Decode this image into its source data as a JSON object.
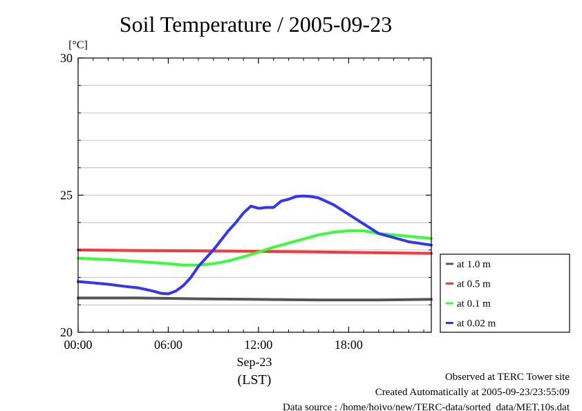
{
  "chart_data": {
    "type": "line",
    "title": "Soil Temperature / 2005-09-23",
    "yunit": "[°C]",
    "ylim": [
      20,
      30
    ],
    "yticks": [
      "20",
      "25",
      "30"
    ],
    "y_minor_grid": [
      21,
      22,
      23,
      24,
      26,
      27,
      28,
      29
    ],
    "xlim": [
      0,
      23.5
    ],
    "xticks": [
      {
        "x": 0,
        "label": "00:00"
      },
      {
        "x": 6,
        "label": "06:00"
      },
      {
        "x": 12,
        "label": "12:00"
      },
      {
        "x": 18,
        "label": "18:00"
      }
    ],
    "xdate": "Sep-23",
    "xlabel": "(LST)",
    "grid": true,
    "legend_position": "right",
    "series": [
      {
        "name": "at 1.0 m",
        "color": "#555555",
        "x": [
          0,
          4,
          8,
          12,
          16,
          20,
          23.5
        ],
        "y": [
          21.25,
          21.25,
          21.22,
          21.2,
          21.18,
          21.18,
          21.2
        ]
      },
      {
        "name": "at 0.5 m",
        "color": "#ff3333",
        "x": [
          0,
          4,
          8,
          12,
          16,
          20,
          23.5
        ],
        "y": [
          23.0,
          22.98,
          22.97,
          22.95,
          22.93,
          22.9,
          22.88
        ]
      },
      {
        "name": "at 0.1 m",
        "color": "#33ff33",
        "x": [
          0,
          2,
          4,
          6,
          7,
          8,
          9,
          10,
          11,
          12,
          13,
          14,
          15,
          16,
          17,
          18,
          19,
          20,
          21,
          22,
          23.5
        ],
        "y": [
          22.7,
          22.65,
          22.58,
          22.5,
          22.45,
          22.45,
          22.5,
          22.6,
          22.75,
          22.92,
          23.1,
          23.25,
          23.4,
          23.55,
          23.65,
          23.7,
          23.7,
          23.6,
          23.55,
          23.5,
          23.42
        ]
      },
      {
        "name": "at 0.02 m",
        "color": "#3333ff",
        "x": [
          0,
          1,
          2,
          3,
          4,
          5,
          5.5,
          6,
          6.5,
          7,
          7.5,
          8,
          9,
          10,
          10.5,
          11,
          11.5,
          12,
          12.5,
          13,
          13.5,
          14,
          14.5,
          15,
          15.5,
          16,
          17,
          18,
          19,
          20,
          21,
          22,
          23.5
        ],
        "y": [
          21.85,
          21.8,
          21.75,
          21.68,
          21.62,
          21.5,
          21.42,
          21.4,
          21.5,
          21.7,
          22.0,
          22.4,
          23.0,
          23.7,
          24.0,
          24.35,
          24.6,
          24.52,
          24.55,
          24.55,
          24.78,
          24.85,
          24.95,
          24.97,
          24.95,
          24.9,
          24.65,
          24.3,
          23.95,
          23.6,
          23.45,
          23.3,
          23.18
        ]
      }
    ]
  },
  "footer": {
    "line1": "Observed at TERC Tower site",
    "line2": "Created Automatically at 2005-09-23/23:55:09",
    "line3": "Data source : /home/hoivo/new/TERC-data/sorted_data/MET.10s.dat"
  }
}
